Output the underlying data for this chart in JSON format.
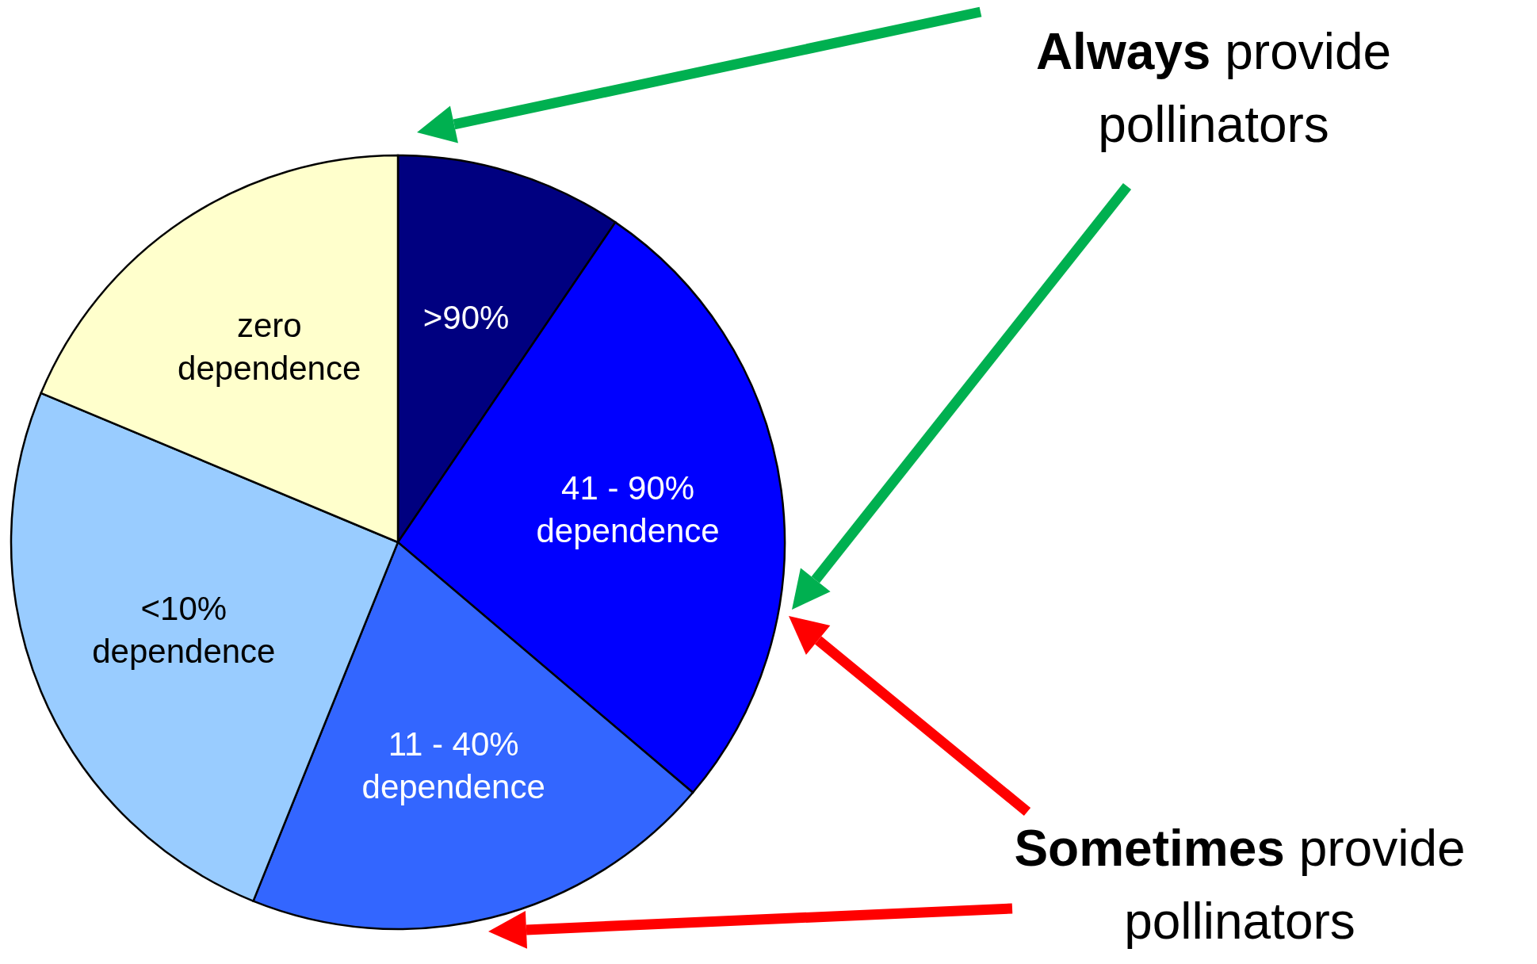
{
  "chart_data": {
    "type": "pie",
    "categories": [
      ">90%",
      "41 - 90%\ndependence",
      "11 - 40%\ndependence",
      "<10%\ndependence",
      "zero\ndependence"
    ],
    "values": [
      9.5,
      26.7,
      19.9,
      25.2,
      18.7
    ],
    "colors": [
      "#000080",
      "#0000ff",
      "#3366ff",
      "#99ccff",
      "#ffffcc"
    ],
    "annotations": [
      "Always provide\npollinators",
      "Sometimes provide\npollinators"
    ]
  }
}
